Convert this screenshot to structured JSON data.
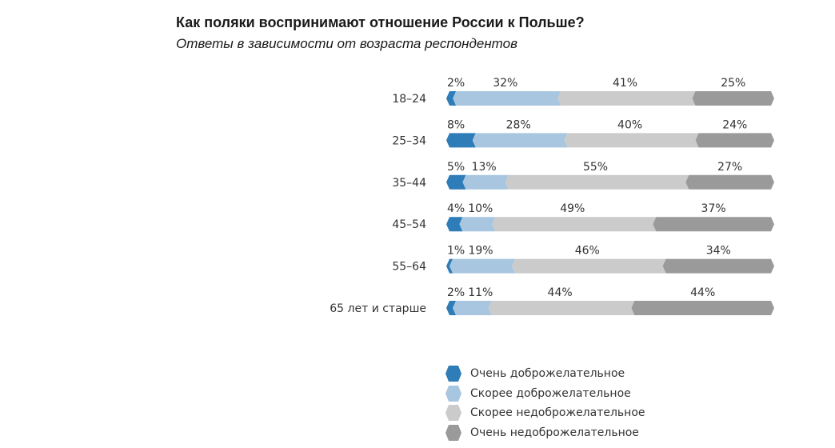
{
  "title": "Как поляки воспринимают отношение России к Польше?",
  "subtitle": "Ответы в зависимости от возраста респондентов",
  "colors": {
    "very_friendly": "#2e7cb8",
    "rather_friendly": "#a8c6df",
    "rather_unfriendly": "#cbcbcb",
    "very_unfriendly": "#9a9a9a"
  },
  "chart_data": {
    "type": "bar",
    "orientation": "horizontal",
    "stacked": true,
    "value_suffix": "%",
    "categories": [
      "18–24",
      "25–34",
      "35–44",
      "45–54",
      "55–64",
      "65 лет и старше"
    ],
    "series": [
      {
        "name": "Очень доброжелательное",
        "color": "#2e7cb8",
        "values": [
          2,
          8,
          5,
          4,
          1,
          2
        ]
      },
      {
        "name": "Скорее доброжелательное",
        "color": "#a8c6df",
        "values": [
          32,
          28,
          13,
          10,
          19,
          11
        ]
      },
      {
        "name": "Скорее недоброжелательное",
        "color": "#cbcbcb",
        "values": [
          41,
          40,
          55,
          49,
          46,
          44
        ]
      },
      {
        "name": "Очень недоброжелательное",
        "color": "#9a9a9a",
        "values": [
          25,
          24,
          27,
          37,
          34,
          44
        ]
      }
    ],
    "legend_position": "bottom",
    "grid": false
  }
}
